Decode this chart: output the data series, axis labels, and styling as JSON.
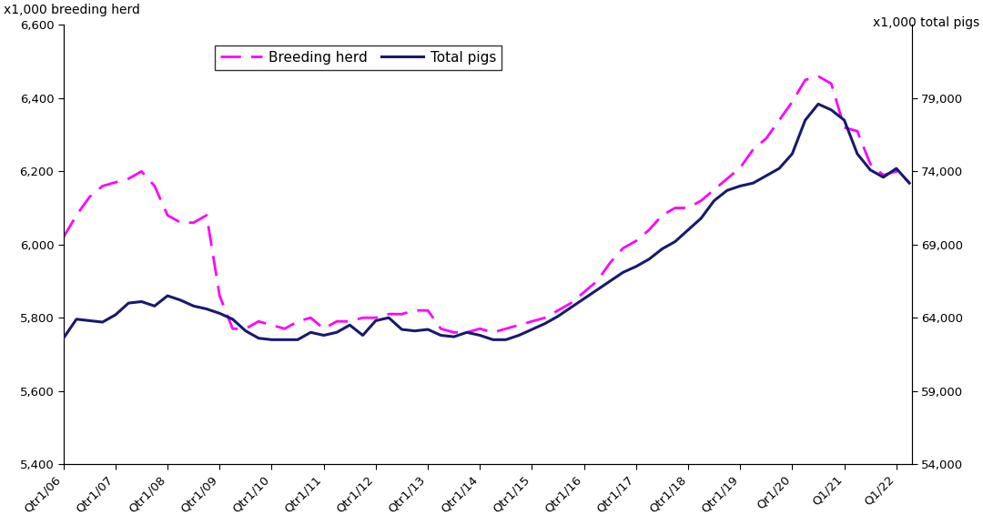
{
  "ylabel_left": "x1,000 breeding herd",
  "ylabel_right": "x1,000 total pigs",
  "ylim_left": [
    5400,
    6600
  ],
  "ylim_right": [
    54000,
    84000
  ],
  "yticks_left": [
    5400,
    5600,
    5800,
    6000,
    6200,
    6400,
    6600
  ],
  "yticks_right": [
    54000,
    59000,
    64000,
    69000,
    74000,
    79000
  ],
  "xtick_labels": [
    "Qtr1/06",
    "Qtr1/07",
    "Qtr1/08",
    "Qtr1/09",
    "Qtr1/10",
    "Qtr1/11",
    "Qtr1/12",
    "Qtr1/13",
    "Qtr1/14",
    "Qtr1/15",
    "Qtr1/16",
    "Qtr1/17",
    "Qtr1/18",
    "Qtr1/19",
    "Qr1/20",
    "Q1/21",
    "Q1/22"
  ],
  "breeding_herd": [
    6020,
    6080,
    6130,
    6160,
    6170,
    6180,
    6200,
    6160,
    6080,
    6060,
    6060,
    6080,
    5860,
    5770,
    5770,
    5790,
    5780,
    5770,
    5790,
    5800,
    5770,
    5790,
    5790,
    5800,
    5800,
    5810,
    5810,
    5820,
    5820,
    5770,
    5760,
    5760,
    5770,
    5760,
    5770,
    5780,
    5790,
    5800,
    5820,
    5840,
    5870,
    5900,
    5950,
    5990,
    6010,
    6040,
    6080,
    6100,
    6100,
    6120,
    6150,
    6180,
    6210,
    6260,
    6290,
    6340,
    6390,
    6450,
    6460,
    6440,
    6320,
    6310,
    6220,
    6190,
    6200,
    6170
  ],
  "total_pigs": [
    62600,
    63900,
    63800,
    63700,
    64200,
    65000,
    65100,
    64800,
    65500,
    65200,
    64800,
    64600,
    64300,
    63900,
    63100,
    62600,
    62500,
    62500,
    62500,
    63000,
    62800,
    63000,
    63500,
    62800,
    63800,
    64000,
    63200,
    63100,
    63200,
    62800,
    62700,
    63000,
    62800,
    62500,
    62500,
    62800,
    63200,
    63600,
    64100,
    64700,
    65300,
    65900,
    66500,
    67100,
    67500,
    68000,
    68700,
    69200,
    70000,
    70800,
    72000,
    72700,
    73000,
    73200,
    73700,
    74200,
    75200,
    77500,
    78600,
    78200,
    77500,
    75200,
    74100,
    73600,
    74200,
    73200
  ],
  "breeding_color": "#FF00FF",
  "total_pigs_color": "#191970",
  "legend_labels": [
    "Breeding herd",
    "Total pigs"
  ],
  "background_color": "#ffffff",
  "font_size": 11
}
